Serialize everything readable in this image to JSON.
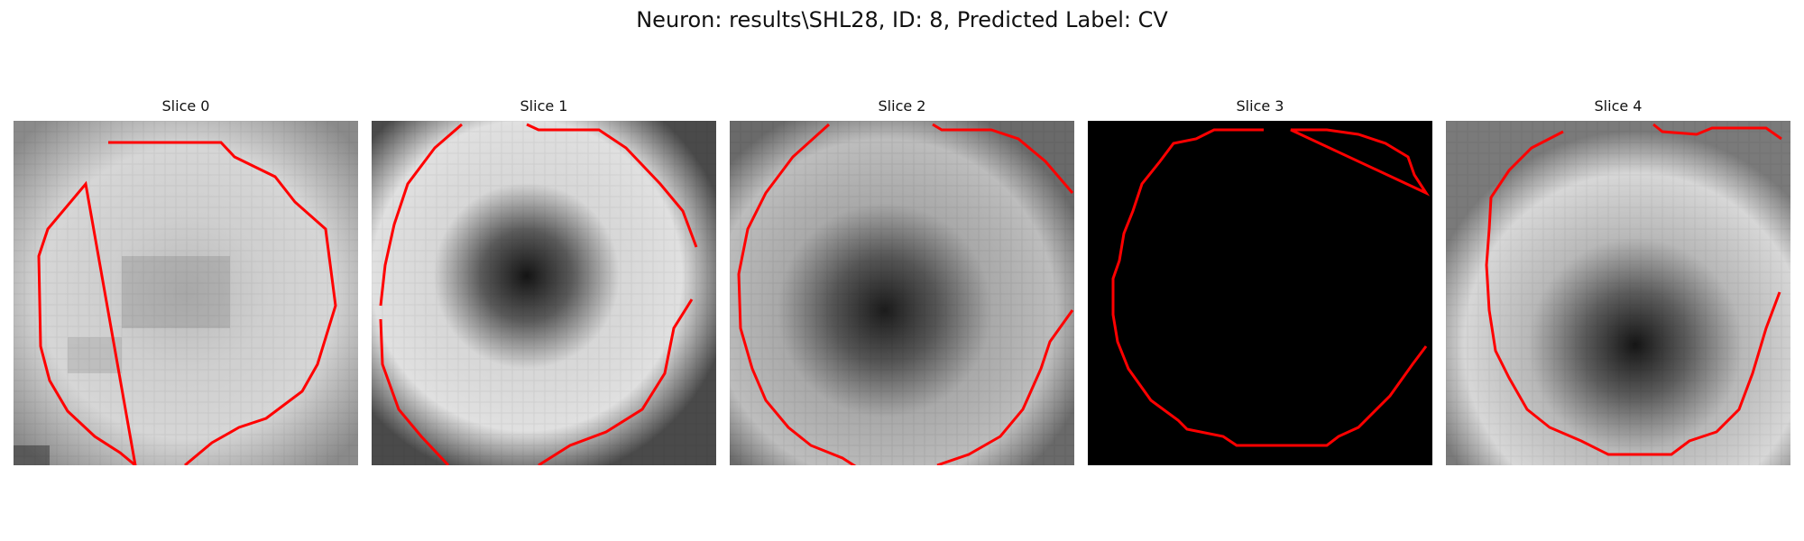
{
  "title": "Neuron: results\\SHL28, ID: 8, Predicted Label: CV",
  "contour_color": "#ff0000",
  "panels": [
    {
      "label": "Slice 0"
    },
    {
      "label": "Slice 1"
    },
    {
      "label": "Slice 2"
    },
    {
      "label": "Slice 3"
    },
    {
      "label": "Slice 4"
    }
  ]
}
